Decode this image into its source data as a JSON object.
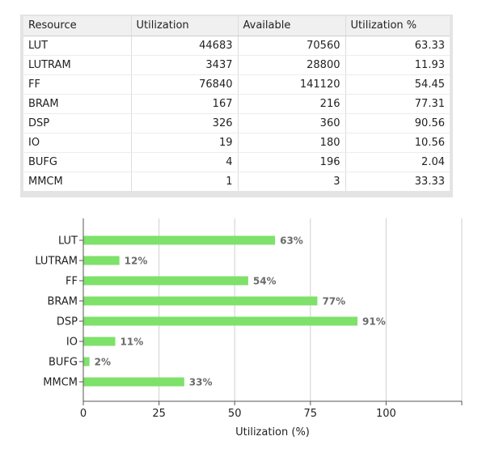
{
  "table": {
    "headers": [
      "Resource",
      "Utilization",
      "Available",
      "Utilization %"
    ],
    "rows": [
      [
        "LUT",
        "44683",
        "70560",
        "63.33"
      ],
      [
        "LUTRAM",
        "3437",
        "28800",
        "11.93"
      ],
      [
        "FF",
        "76840",
        "141120",
        "54.45"
      ],
      [
        "BRAM",
        "167",
        "216",
        "77.31"
      ],
      [
        "DSP",
        "326",
        "360",
        "90.56"
      ],
      [
        "IO",
        "19",
        "180",
        "10.56"
      ],
      [
        "BUFG",
        "4",
        "196",
        "2.04"
      ],
      [
        "MMCM",
        "1",
        "3",
        "33.33"
      ]
    ]
  },
  "chart_data": {
    "type": "bar",
    "orientation": "horizontal",
    "categories": [
      "LUT",
      "LUTRAM",
      "FF",
      "BRAM",
      "DSP",
      "IO",
      "BUFG",
      "MMCM"
    ],
    "values": [
      63.33,
      11.93,
      54.45,
      77.31,
      90.56,
      10.56,
      2.04,
      33.33
    ],
    "data_labels": [
      "63%",
      "12%",
      "54%",
      "77%",
      "91%",
      "11%",
      "2%",
      "33%"
    ],
    "xlabel": "Utilization (%)",
    "ylabel": "",
    "xlim": [
      0,
      125
    ],
    "xticks": [
      0,
      25,
      50,
      75,
      100
    ],
    "xtick_labels": [
      "0",
      "25",
      "50",
      "75",
      "100"
    ],
    "grid": true,
    "bar_color": "#7ee16a",
    "label_color": "#6b6b6b"
  }
}
